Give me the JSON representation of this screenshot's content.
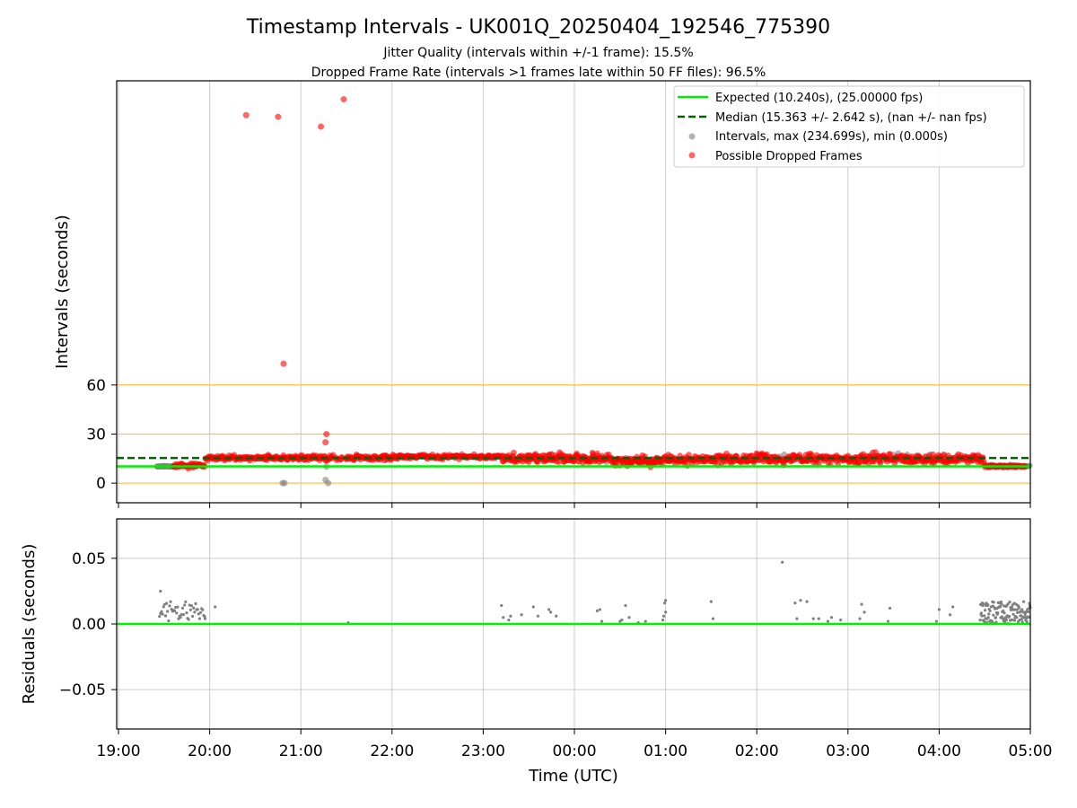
{
  "chart_data": {
    "type": "scatter",
    "title": "Timestamp Intervals - UK001Q_20250404_192546_775390",
    "subtitle_1": "Jitter Quality (intervals within +/-1 frame): 15.5%",
    "subtitle_2": "Dropped Frame Rate (intervals >1 frames late within 50 FF files): 96.5%",
    "xlabel": "Time (UTC)",
    "x_ticks": [
      "19:00",
      "20:00",
      "21:00",
      "22:00",
      "23:00",
      "00:00",
      "01:00",
      "02:00",
      "03:00",
      "04:00",
      "05:00"
    ],
    "x_range_hours": [
      18.98,
      29.0
    ],
    "top": {
      "ylabel": "Intervals (seconds)",
      "y_ticks": [
        0,
        30,
        60
      ],
      "ylim": [
        -12,
        246
      ],
      "reference_lines": [
        0,
        30,
        60
      ],
      "legend": {
        "placement": "top-right",
        "entries": [
          "Expected (10.240s), (25.00000 fps)",
          "Median (15.363 +/- 2.642 s), (nan +/- nan fps)",
          "Intervals, max (234.699s), min (0.000s)",
          "Possible Dropped Frames"
        ]
      },
      "expected_value": 10.24,
      "median_value": 15.363,
      "outliers_dropped": [
        {
          "x": 20.4,
          "y": 225
        },
        {
          "x": 20.75,
          "y": 224
        },
        {
          "x": 21.22,
          "y": 218
        },
        {
          "x": 21.47,
          "y": 234.7
        },
        {
          "x": 20.81,
          "y": 73
        },
        {
          "x": 21.28,
          "y": 30
        },
        {
          "x": 21.27,
          "y": 25
        }
      ],
      "outliers_intervals": [
        {
          "x": 20.8,
          "y": 0
        },
        {
          "x": 20.82,
          "y": 0
        },
        {
          "x": 21.27,
          "y": 2
        },
        {
          "x": 21.3,
          "y": 0
        },
        {
          "x": 21.28,
          "y": 10
        }
      ]
    },
    "bottom": {
      "ylabel": "Residuals (seconds)",
      "y_ticks": [
        0.05,
        0.0,
        -0.05
      ],
      "y_tick_labels": [
        "0.05",
        "0.00",
        "−0.05"
      ],
      "ylim": [
        -0.08,
        0.08
      ],
      "zero_line": 0.0,
      "sparse_points": [
        {
          "x": 23.2,
          "y": 0.014
        },
        {
          "x": 23.22,
          "y": 0.005
        },
        {
          "x": 23.28,
          "y": 0.003
        },
        {
          "x": 23.3,
          "y": 0.006
        },
        {
          "x": 23.42,
          "y": 0.007
        },
        {
          "x": 23.55,
          "y": 0.013
        },
        {
          "x": 23.6,
          "y": 0.006
        },
        {
          "x": 23.72,
          "y": 0.011
        },
        {
          "x": 23.74,
          "y": 0.009
        },
        {
          "x": 23.8,
          "y": 0.006
        },
        {
          "x": 24.25,
          "y": 0.01
        },
        {
          "x": 24.28,
          "y": 0.011
        },
        {
          "x": 24.3,
          "y": 0.002
        },
        {
          "x": 24.5,
          "y": 0.002
        },
        {
          "x": 24.52,
          "y": 0.003
        },
        {
          "x": 24.56,
          "y": 0.014
        },
        {
          "x": 24.6,
          "y": 0.005
        },
        {
          "x": 24.7,
          "y": 0.001
        },
        {
          "x": 24.78,
          "y": 0.002
        },
        {
          "x": 24.97,
          "y": 0.003
        },
        {
          "x": 24.98,
          "y": 0.006
        },
        {
          "x": 24.99,
          "y": 0.016
        },
        {
          "x": 25.0,
          "y": 0.018
        },
        {
          "x": 25.0,
          "y": 0.009
        },
        {
          "x": 25.5,
          "y": 0.017
        },
        {
          "x": 25.52,
          "y": 0.004
        },
        {
          "x": 26.28,
          "y": 0.047
        },
        {
          "x": 26.42,
          "y": 0.016
        },
        {
          "x": 26.44,
          "y": 0.004
        },
        {
          "x": 26.48,
          "y": 0.018
        },
        {
          "x": 26.55,
          "y": 0.017
        },
        {
          "x": 26.62,
          "y": 0.004
        },
        {
          "x": 26.68,
          "y": 0.004
        },
        {
          "x": 26.78,
          "y": 0.002
        },
        {
          "x": 26.82,
          "y": 0.005
        },
        {
          "x": 26.92,
          "y": 0.003
        },
        {
          "x": 27.13,
          "y": 0.004
        },
        {
          "x": 27.15,
          "y": 0.015
        },
        {
          "x": 27.18,
          "y": 0.009
        },
        {
          "x": 27.44,
          "y": 0.002
        },
        {
          "x": 27.46,
          "y": 0.012
        },
        {
          "x": 27.97,
          "y": 0.002
        },
        {
          "x": 28.0,
          "y": 0.011
        },
        {
          "x": 28.12,
          "y": 0.007
        },
        {
          "x": 28.15,
          "y": 0.013
        },
        {
          "x": 19.95,
          "y": 0.004
        },
        {
          "x": 20.06,
          "y": 0.013
        },
        {
          "x": 21.52,
          "y": 0.001
        }
      ]
    },
    "colors": {
      "expected": "#00ee00",
      "median": "#006400",
      "intervals": "#808080",
      "dropped": "#ff0000",
      "reference_lines": "#ffc04d",
      "grid": "#cccccc"
    }
  }
}
